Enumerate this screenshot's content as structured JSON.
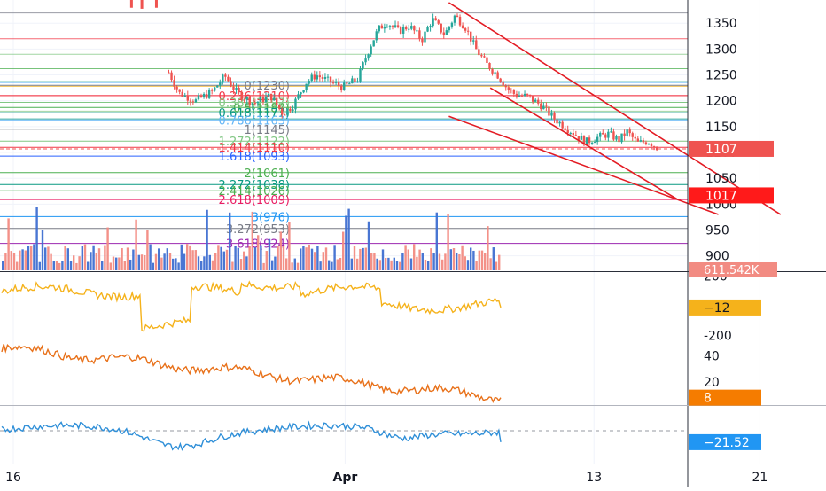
{
  "chart_data": {
    "type": "line",
    "title": "",
    "price_pane": {
      "ylim": [
        872,
        1395
      ],
      "y_ticks": [
        {
          "value": 1350,
          "label": "1350"
        },
        {
          "value": 1300,
          "label": "1300"
        },
        {
          "value": 1250,
          "label": "1250"
        },
        {
          "value": 1200,
          "label": "1200"
        },
        {
          "value": 1150,
          "label": "1150"
        },
        {
          "value": 1100,
          "label": "1100"
        },
        {
          "value": 1050,
          "label": "1050"
        },
        {
          "value": 1000,
          "label": "1000"
        },
        {
          "value": 950,
          "label": "950"
        },
        {
          "value": 900,
          "label": "900"
        }
      ],
      "current_price": {
        "value": 1107,
        "label": "1107",
        "color": "#ef5350"
      },
      "target_price": {
        "value": 1017,
        "label": "1017",
        "color": "#ff1a1a"
      },
      "fib_levels": [
        {
          "ratio": "0",
          "value": 1230,
          "label": "0(1230)",
          "color": "#787b86"
        },
        {
          "ratio": "0.236",
          "value": 1210,
          "label": "0.236(1210)",
          "color": "#f23645"
        },
        {
          "ratio": "0.382",
          "value": 1197,
          "label": "0.382(1197)",
          "color": "#81c784"
        },
        {
          "ratio": "0.5",
          "value": 1187,
          "label": "0.5(1187)",
          "color": "#4caf50"
        },
        {
          "ratio": "0.618",
          "value": 1177,
          "label": "0.618(1177)",
          "color": "#089981"
        },
        {
          "ratio": "0.786",
          "value": 1163,
          "label": "0.786(1163)",
          "color": "#64b5f6"
        },
        {
          "ratio": "1",
          "value": 1145,
          "label": "1(1145)",
          "color": "#787b86"
        },
        {
          "ratio": "1.272",
          "value": 1122,
          "label": "1.272(1122)",
          "color": "#81c784"
        },
        {
          "ratio": "1.414",
          "value": 1110,
          "label": "1.414(1110)",
          "color": "#f23645"
        },
        {
          "ratio": "1.618",
          "value": 1093,
          "label": "1.618(1093)",
          "color": "#2962ff"
        },
        {
          "ratio": "2",
          "value": 1061,
          "label": "2(1061)",
          "color": "#4caf50"
        },
        {
          "ratio": "2.272",
          "value": 1038,
          "label": "2.272(1038)",
          "color": "#089981"
        },
        {
          "ratio": "2.414",
          "value": 1026,
          "label": "2.414(1026)",
          "color": "#4caf50"
        },
        {
          "ratio": "2.618",
          "value": 1009,
          "label": "2.618(1009)",
          "color": "#e91e63"
        },
        {
          "ratio": "3",
          "value": 976,
          "label": "3(976)",
          "color": "#2196f3"
        },
        {
          "ratio": "3.272",
          "value": 953,
          "label": "3.272(953)",
          "color": "#787b86"
        },
        {
          "ratio": "3.618",
          "value": 924,
          "label": "3.618(924)",
          "color": "#9c27b0"
        }
      ],
      "horizontal_levels": [
        1370,
        1320,
        1290,
        1262,
        1237,
        1235,
        1228,
        1210,
        1180,
        1165
      ],
      "trendlines": [
        {
          "from": [
            "Apr 6",
            1390
          ],
          "to": [
            "Apr 22",
            980
          ],
          "color": "#e31b23"
        },
        {
          "from": [
            "Apr 8",
            1225
          ],
          "to": [
            "Apr 17",
            1010
          ],
          "color": "#e31b23"
        },
        {
          "from": [
            "Apr 6",
            1170
          ],
          "to": [
            "Apr 19",
            980
          ],
          "color": "#e31b23"
        }
      ]
    },
    "volume_label": "611.542K",
    "x_ticks": [
      {
        "label": "16",
        "date": "Mar 16"
      },
      {
        "label": "Apr",
        "date": "Apr 1"
      },
      {
        "label": "13",
        "date": "Apr 13"
      },
      {
        "label": "21",
        "date": "Apr 21"
      }
    ],
    "indicators": [
      {
        "name": "",
        "color": "#f5b21b",
        "ylim": [
          -215,
          220
        ],
        "ticks": [
          {
            "value": 200,
            "label": "200"
          },
          {
            "value": -200,
            "label": "-200"
          }
        ],
        "last": {
          "value": -12,
          "label": "−12"
        },
        "badge_color": "#f5b21b",
        "badge_text_color": "#131722"
      },
      {
        "name": "",
        "color": "#e8711a",
        "ylim": [
          3,
          52
        ],
        "ticks": [
          {
            "value": 40,
            "label": "40"
          },
          {
            "value": 20,
            "label": "20"
          }
        ],
        "last": {
          "value": 8,
          "label": "8"
        },
        "badge_color": "#f57c00",
        "badge_text_color": "#ffffff"
      },
      {
        "name": "",
        "color": "#2f8fd8",
        "ylim": [
          -60,
          45
        ],
        "ticks": [],
        "baseline": 0,
        "last": {
          "value": -21.52,
          "label": "−21.52"
        },
        "badge_color": "#2196f3",
        "badge_text_color": "#ffffff"
      }
    ]
  }
}
